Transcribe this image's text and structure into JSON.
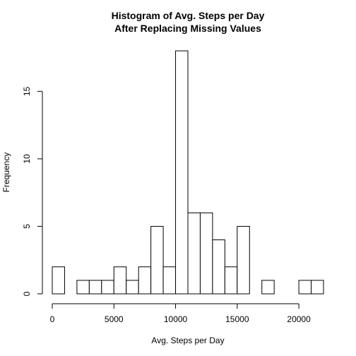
{
  "chart_data": {
    "type": "bar",
    "title": [
      "Histogram of Avg. Steps per Day",
      "After Replacing Missing Values"
    ],
    "xlabel": "Avg. Steps per Day",
    "ylabel": "Frequency",
    "bin_width": 1000,
    "bins_start": [
      0,
      1000,
      2000,
      3000,
      4000,
      5000,
      6000,
      7000,
      8000,
      9000,
      10000,
      11000,
      12000,
      13000,
      14000,
      15000,
      16000,
      17000,
      18000,
      19000,
      20000,
      21000
    ],
    "values": [
      2,
      0,
      1,
      1,
      1,
      2,
      1,
      2,
      5,
      2,
      18,
      6,
      6,
      4,
      2,
      5,
      0,
      1,
      0,
      0,
      1,
      1
    ],
    "xlim": [
      0,
      22000
    ],
    "ylim": [
      0,
      18
    ],
    "xticks": [
      0,
      5000,
      10000,
      15000,
      20000
    ],
    "yticks": [
      0,
      5,
      10,
      15
    ],
    "grid": false
  }
}
